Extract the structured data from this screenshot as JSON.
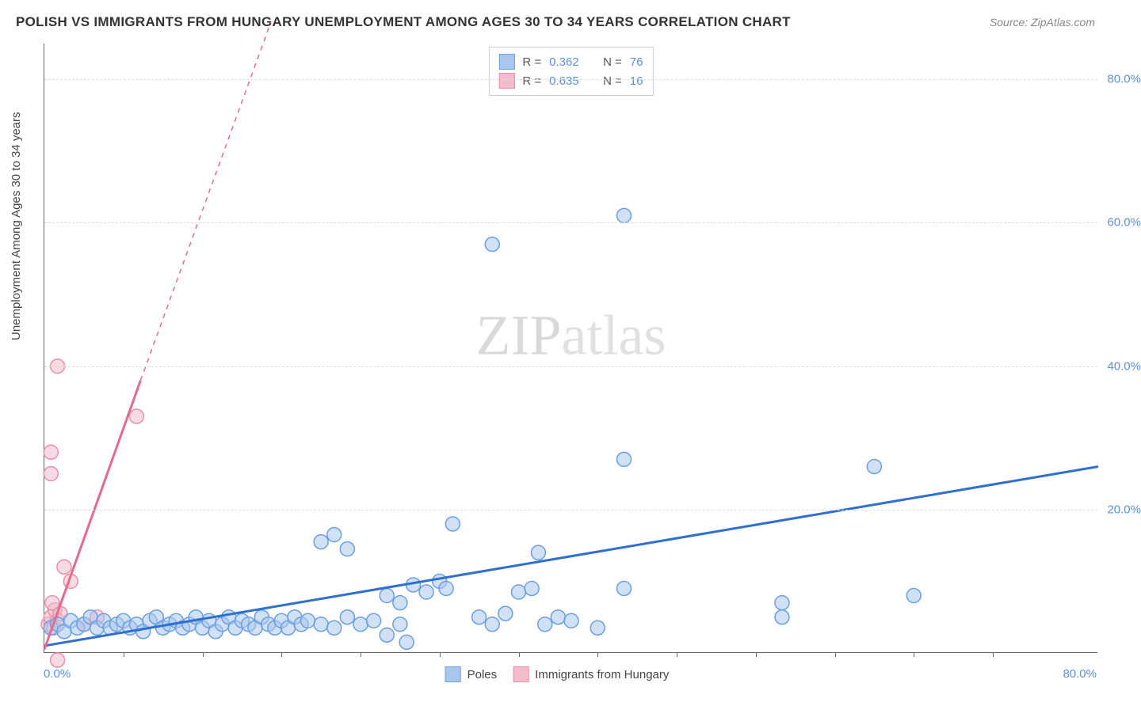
{
  "title": "POLISH VS IMMIGRANTS FROM HUNGARY UNEMPLOYMENT AMONG AGES 30 TO 34 YEARS CORRELATION CHART",
  "source": "Source: ZipAtlas.com",
  "ylabel": "Unemployment Among Ages 30 to 34 years",
  "watermark_a": "ZIP",
  "watermark_b": "atlas",
  "chart": {
    "type": "scatter",
    "xlim": [
      0,
      80
    ],
    "ylim": [
      0,
      85
    ],
    "xtick_start": "0.0%",
    "xtick_end": "80.0%",
    "yticks": [
      {
        "v": 20,
        "label": "20.0%"
      },
      {
        "v": 40,
        "label": "40.0%"
      },
      {
        "v": 60,
        "label": "60.0%"
      },
      {
        "v": 80,
        "label": "80.0%"
      }
    ],
    "xticks_minor": [
      6,
      12,
      18,
      24,
      30,
      36,
      42,
      48,
      54,
      60,
      66,
      72
    ],
    "background_color": "#ffffff",
    "grid_color": "#dddddd",
    "series": [
      {
        "name": "Poles",
        "color_fill": "#a9c6ec",
        "color_stroke": "#6b9fe0",
        "line_color": "#2f6fd0",
        "marker_r": 9,
        "R": "0.362",
        "N": "76",
        "trend": {
          "x1": 0,
          "y1": 1.0,
          "x2": 80,
          "y2": 26.0,
          "dash": false
        },
        "points": [
          [
            0.5,
            3.5
          ],
          [
            1,
            4
          ],
          [
            1.5,
            3
          ],
          [
            2,
            4.5
          ],
          [
            2.5,
            3.5
          ],
          [
            3,
            4
          ],
          [
            3.5,
            5
          ],
          [
            4,
            3.5
          ],
          [
            4.5,
            4.5
          ],
          [
            5,
            3.5
          ],
          [
            5.5,
            4
          ],
          [
            6,
            4.5
          ],
          [
            6.5,
            3.5
          ],
          [
            7,
            4
          ],
          [
            7.5,
            3
          ],
          [
            8,
            4.5
          ],
          [
            8.5,
            5
          ],
          [
            9,
            3.5
          ],
          [
            9.5,
            4
          ],
          [
            10,
            4.5
          ],
          [
            10.5,
            3.5
          ],
          [
            11,
            4
          ],
          [
            11.5,
            5
          ],
          [
            12,
            3.5
          ],
          [
            12.5,
            4.5
          ],
          [
            13,
            3
          ],
          [
            13.5,
            4
          ],
          [
            14,
            5
          ],
          [
            14.5,
            3.5
          ],
          [
            15,
            4.5
          ],
          [
            15.5,
            4
          ],
          [
            16,
            3.5
          ],
          [
            16.5,
            5
          ],
          [
            17,
            4
          ],
          [
            17.5,
            3.5
          ],
          [
            18,
            4.5
          ],
          [
            18.5,
            3.5
          ],
          [
            19,
            5
          ],
          [
            19.5,
            4
          ],
          [
            20,
            4.5
          ],
          [
            21,
            4
          ],
          [
            22,
            3.5
          ],
          [
            23,
            5
          ],
          [
            24,
            4
          ],
          [
            25,
            4.5
          ],
          [
            26,
            2.5
          ],
          [
            27,
            4
          ],
          [
            27.5,
            1.5
          ],
          [
            21,
            15.5
          ],
          [
            22,
            16.5
          ],
          [
            23,
            14.5
          ],
          [
            26,
            8
          ],
          [
            27,
            7
          ],
          [
            28,
            9.5
          ],
          [
            29,
            8.5
          ],
          [
            30,
            10
          ],
          [
            30.5,
            9
          ],
          [
            31,
            18
          ],
          [
            33,
            5
          ],
          [
            34,
            4
          ],
          [
            35,
            5.5
          ],
          [
            36,
            8.5
          ],
          [
            37,
            9
          ],
          [
            38,
            4
          ],
          [
            39,
            5
          ],
          [
            37.5,
            14
          ],
          [
            40,
            4.5
          ],
          [
            42,
            3.5
          ],
          [
            34,
            57
          ],
          [
            44,
            61
          ],
          [
            44,
            27
          ],
          [
            44,
            9
          ],
          [
            56,
            5
          ],
          [
            56,
            7
          ],
          [
            63,
            26
          ],
          [
            66,
            8
          ]
        ]
      },
      {
        "name": "Immigrants from Hungary",
        "color_fill": "#f3bccb",
        "color_stroke": "#e98fab",
        "line_color": "#e46a8e",
        "marker_r": 9,
        "R": "0.635",
        "N": "16",
        "trend": {
          "x1": 0,
          "y1": 0.5,
          "x2": 7.3,
          "y2": 38,
          "dash": false
        },
        "trend_ext": {
          "x1": 7.3,
          "y1": 38,
          "x2": 17.2,
          "y2": 88,
          "dash": true
        },
        "points": [
          [
            0.3,
            4
          ],
          [
            0.5,
            5
          ],
          [
            0.7,
            3.5
          ],
          [
            0.8,
            6
          ],
          [
            1,
            4.5
          ],
          [
            1.2,
            5.5
          ],
          [
            0.6,
            7
          ],
          [
            0.5,
            25
          ],
          [
            0.5,
            28
          ],
          [
            1,
            40
          ],
          [
            1.5,
            12
          ],
          [
            2,
            10
          ],
          [
            3,
            4
          ],
          [
            4,
            5
          ],
          [
            7,
            33
          ],
          [
            1,
            -1
          ]
        ]
      }
    ]
  },
  "legend_bottom": {
    "a": "Poles",
    "b": "Immigrants from Hungary"
  }
}
